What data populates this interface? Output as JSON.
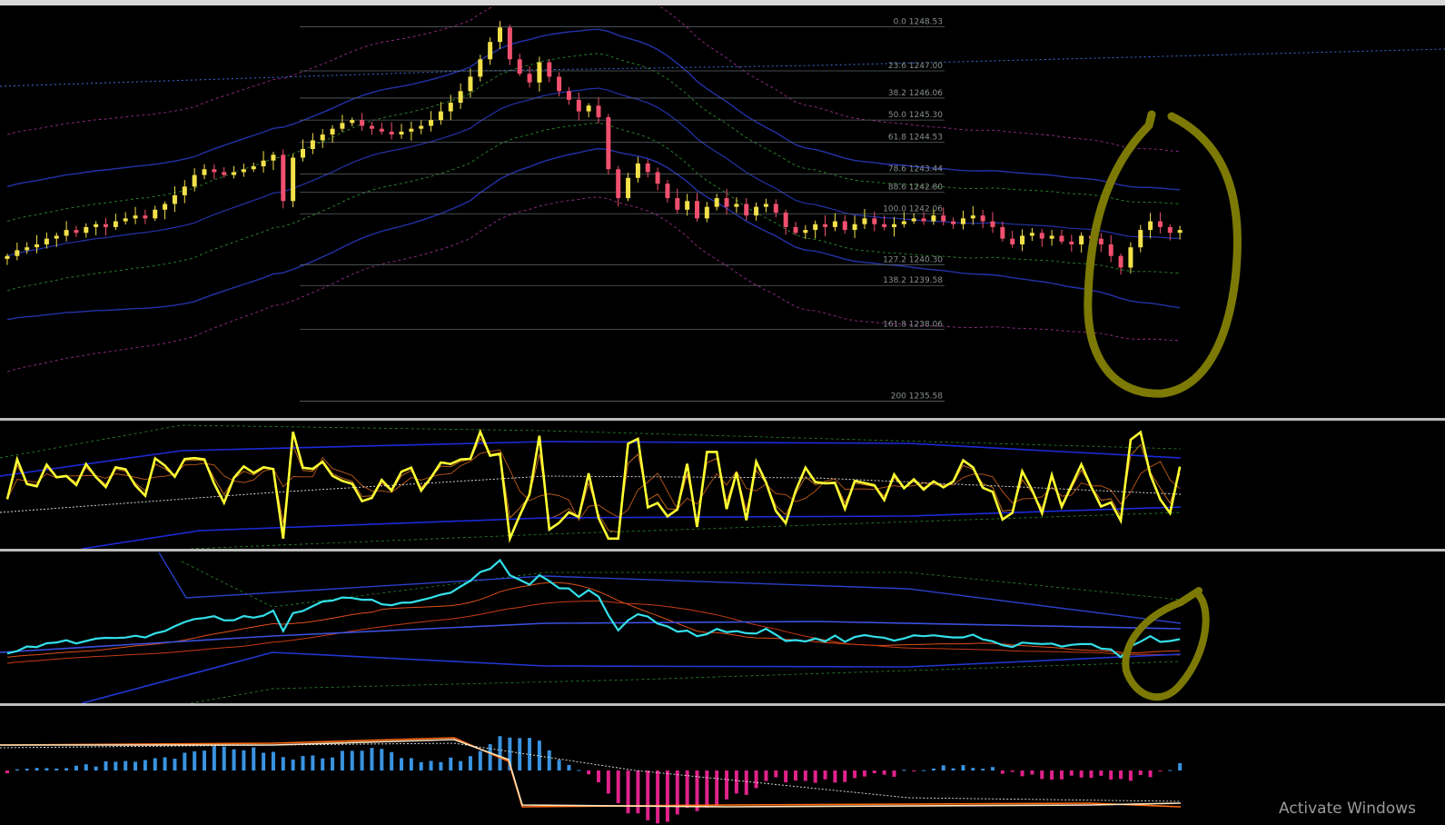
{
  "window": {
    "watermark": "Activate Windows"
  },
  "chart_data": [
    {
      "type": "candlestick",
      "pane": "price",
      "bars": 120,
      "y_range": [
        1235.0,
        1249.2
      ],
      "close": [
        1240.6,
        1240.8,
        1240.9,
        1241.0,
        1241.2,
        1241.3,
        1241.5,
        1241.4,
        1241.6,
        1241.7,
        1241.6,
        1241.8,
        1241.9,
        1242.0,
        1241.9,
        1242.2,
        1242.4,
        1242.7,
        1243.0,
        1243.4,
        1243.6,
        1243.5,
        1243.4,
        1243.5,
        1243.6,
        1243.7,
        1243.9,
        1244.1,
        1242.5,
        1244.0,
        1244.3,
        1244.6,
        1244.8,
        1245.0,
        1245.2,
        1245.3,
        1245.1,
        1245.0,
        1244.9,
        1244.8,
        1244.9,
        1245.0,
        1245.1,
        1245.3,
        1245.6,
        1245.9,
        1246.3,
        1246.8,
        1247.4,
        1248.0,
        1248.5,
        1247.4,
        1246.9,
        1246.6,
        1247.3,
        1246.8,
        1246.3,
        1246.0,
        1245.6,
        1245.8,
        1245.4,
        1243.6,
        1242.6,
        1243.3,
        1243.8,
        1243.5,
        1243.1,
        1242.6,
        1242.2,
        1242.5,
        1241.9,
        1242.3,
        1242.6,
        1242.3,
        1242.4,
        1242.0,
        1242.3,
        1242.4,
        1242.1,
        1241.6,
        1241.4,
        1241.5,
        1241.7,
        1241.6,
        1241.8,
        1241.5,
        1241.7,
        1241.9,
        1241.7,
        1241.6,
        1241.7,
        1241.8,
        1241.9,
        1241.8,
        1242.0,
        1241.8,
        1241.7,
        1241.9,
        1242.0,
        1241.8,
        1241.6,
        1241.2,
        1241.0,
        1241.3,
        1241.4,
        1241.2,
        1241.3,
        1241.1,
        1241.0,
        1241.3,
        1241.2,
        1241.0,
        1240.6,
        1240.2,
        1240.9,
        1241.5,
        1241.8,
        1241.6,
        1241.4,
        1241.5
      ]
    },
    {
      "type": "fibonacci_levels",
      "pane": "price",
      "levels": [
        {
          "label": "0.0 1248.53",
          "value": 1248.53
        },
        {
          "label": "23.6 1247.00",
          "value": 1247.0
        },
        {
          "label": "38.2 1246.06",
          "value": 1246.06
        },
        {
          "label": "50.0 1245.30",
          "value": 1245.3
        },
        {
          "label": "61.8 1244.53",
          "value": 1244.53
        },
        {
          "label": "78.6 1243.44",
          "value": 1243.44
        },
        {
          "label": "88.6 1242.80",
          "value": 1242.8
        },
        {
          "label": "100.0 1242.06",
          "value": 1242.06
        },
        {
          "label": "127.2 1240.30",
          "value": 1240.3
        },
        {
          "label": "138.2 1239.58",
          "value": 1239.58
        },
        {
          "label": "161.8 1238.06",
          "value": 1238.06
        },
        {
          "label": "200 1235.58",
          "value": 1235.58
        }
      ]
    },
    {
      "type": "line",
      "pane": "oscillator",
      "name": "",
      "y_range": [
        0,
        100
      ]
    },
    {
      "type": "line",
      "pane": "indicator",
      "name": "",
      "y_range": [
        0,
        100
      ]
    },
    {
      "type": "histogram",
      "pane": "macd",
      "name": "",
      "y_range": [
        -1,
        1
      ]
    }
  ],
  "colors": {
    "background": "#000000",
    "bull_candle": "#f2e14a",
    "bear_candle": "#f0506e",
    "fib_line": "#5b6366",
    "band_blue": "#2432a8",
    "band_green": "#2d8a2d",
    "band_magenta": "#9a2c8c",
    "rsi_line": "#ffff33",
    "cyan_line": "#33e0ea",
    "macd_pos": "#3a93e0",
    "macd_neg": "#e0228a",
    "annotation": "#7c7a05"
  }
}
